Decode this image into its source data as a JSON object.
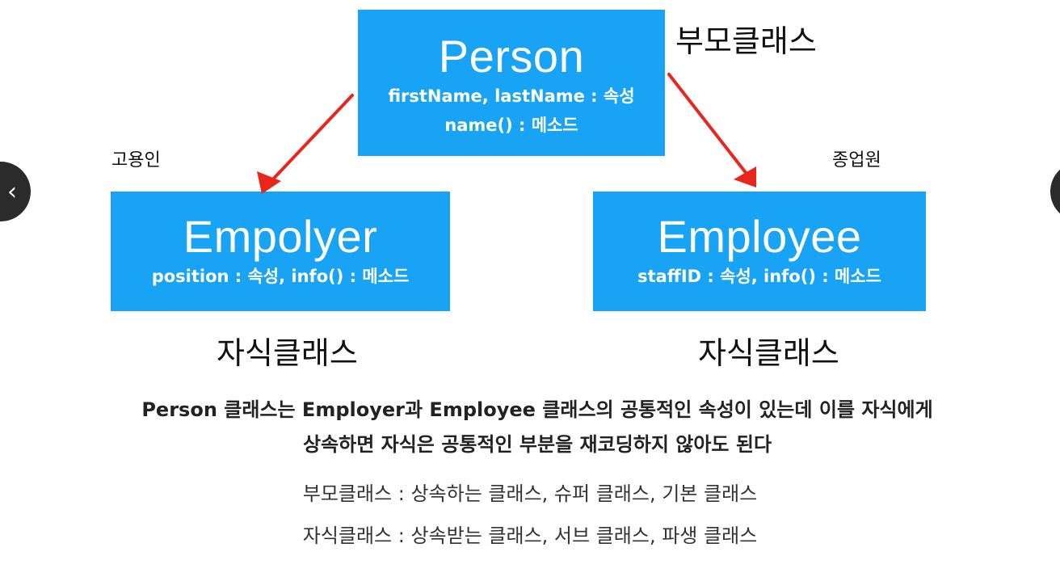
{
  "diagram": {
    "person": {
      "title": "Person",
      "attributes": "firstName, lastName : 속성",
      "methods": "name() : 메소드"
    },
    "employer": {
      "title": "Empolyer",
      "details": "position : 속성, info() : 메소드"
    },
    "employee": {
      "title": "Employee",
      "details": "staffID : 속성, info() : 메소드"
    },
    "labels": {
      "parent_class": "부모클래스",
      "employer_kr": "고용인",
      "employee_kr": "종업원",
      "child_class_left": "자식클래스",
      "child_class_right": "자식클래스"
    },
    "colors": {
      "box": "#18a3f5",
      "arrow": "#e8261c"
    }
  },
  "explanation": {
    "line1": "Person 클래스는 Employer과 Employee 클래스의 공통적인 속성이 있는데 이를 자식에게",
    "line2": "상속하면 자식은 공통적인 부분을 재코딩하지 않아도 된다"
  },
  "definitions": {
    "parent": "부모클래스 : 상속하는 클래스, 슈퍼 클래스, 기본 클래스",
    "child": "자식클래스 : 상속받는 클래스, 서브 클래스, 파생 클래스"
  },
  "navigation": {
    "prev_icon": "chevron-left-icon",
    "prev_glyph": "‹",
    "next_icon": "chevron-right-icon"
  }
}
